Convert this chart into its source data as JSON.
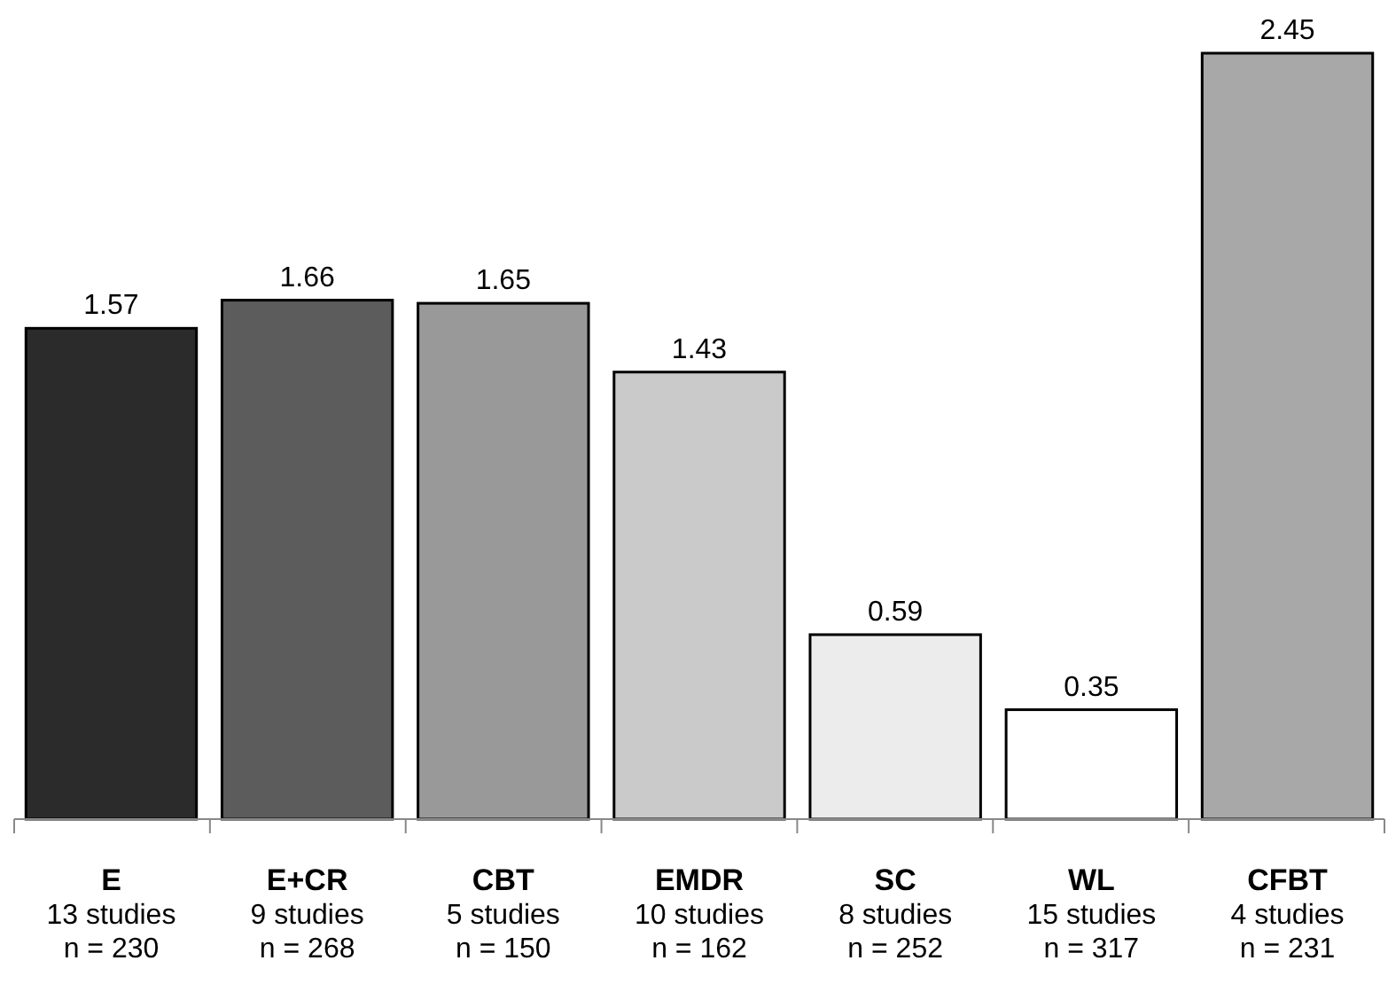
{
  "chart_data": {
    "type": "bar",
    "categories": [
      "E\n13 studies\nn = 230",
      "E+CR\n9 studies\nn = 268",
      "CBT\n5 studies\nn = 150",
      "EMDR\n10 studies\nn = 162",
      "SC\n8 studies\nn = 252",
      "WL\n15 studies\nn = 317",
      "CFBT\n4 studies\nn = 231"
    ],
    "values": [
      1.57,
      1.66,
      1.65,
      1.43,
      0.59,
      0.35,
      2.45
    ],
    "colors": [
      "#2b2b2b",
      "#5c5c5c",
      "#999999",
      "#cacaca",
      "#ececec",
      "#ffffff",
      "#a8a8a8"
    ],
    "data_labels": true
  }
}
